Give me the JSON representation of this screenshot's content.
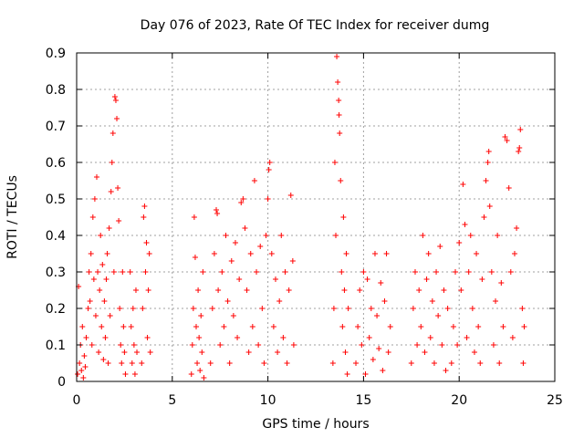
{
  "chart_data": {
    "type": "scatter",
    "title": "Day 076 of 2023, Rate Of TEC Index for receiver dumg",
    "xlabel": "GPS time / hours",
    "ylabel": "ROTI / TECUs",
    "xlim": [
      0,
      25
    ],
    "ylim": [
      0,
      0.9
    ],
    "xticks": [
      0,
      5,
      10,
      15,
      20,
      25
    ],
    "yticks": [
      0,
      0.1,
      0.2,
      0.3,
      0.4,
      0.5,
      0.6,
      0.7,
      0.8,
      0.9
    ],
    "grid": true,
    "marker": "+",
    "color": "#ff0000",
    "series": [
      {
        "values": [
          [
            0.05,
            0.02
          ],
          [
            0.1,
            0.26
          ],
          [
            0.15,
            0.05
          ],
          [
            0.2,
            0.1
          ],
          [
            0.25,
            0.03
          ],
          [
            0.3,
            0.15
          ],
          [
            0.35,
            0.01
          ],
          [
            0.4,
            0.07
          ],
          [
            0.45,
            0.04
          ],
          [
            0.5,
            0.12
          ],
          [
            0.6,
            0.2
          ],
          [
            0.65,
            0.3
          ],
          [
            0.7,
            0.22
          ],
          [
            0.75,
            0.35
          ],
          [
            0.8,
            0.1
          ],
          [
            0.85,
            0.45
          ],
          [
            0.9,
            0.28
          ],
          [
            0.95,
            0.5
          ],
          [
            1.0,
            0.18
          ],
          [
            1.05,
            0.56
          ],
          [
            1.1,
            0.3
          ],
          [
            1.15,
            0.08
          ],
          [
            1.2,
            0.25
          ],
          [
            1.25,
            0.4
          ],
          [
            1.3,
            0.15
          ],
          [
            1.35,
            0.32
          ],
          [
            1.4,
            0.06
          ],
          [
            1.45,
            0.22
          ],
          [
            1.5,
            0.12
          ],
          [
            1.55,
            0.28
          ],
          [
            1.6,
            0.35
          ],
          [
            1.65,
            0.05
          ],
          [
            1.7,
            0.42
          ],
          [
            1.75,
            0.18
          ],
          [
            1.8,
            0.52
          ],
          [
            1.85,
            0.6
          ],
          [
            1.9,
            0.68
          ],
          [
            1.95,
            0.3
          ],
          [
            2.0,
            0.78
          ],
          [
            2.05,
            0.77
          ],
          [
            2.1,
            0.72
          ],
          [
            2.15,
            0.53
          ],
          [
            2.2,
            0.44
          ],
          [
            2.25,
            0.2
          ],
          [
            2.3,
            0.1
          ],
          [
            2.35,
            0.05
          ],
          [
            2.4,
            0.3
          ],
          [
            2.45,
            0.15
          ],
          [
            2.5,
            0.08
          ],
          [
            2.55,
            0.02
          ],
          [
            2.8,
            0.3
          ],
          [
            2.85,
            0.15
          ],
          [
            2.9,
            0.05
          ],
          [
            2.95,
            0.2
          ],
          [
            3.0,
            0.1
          ],
          [
            3.05,
            0.02
          ],
          [
            3.1,
            0.25
          ],
          [
            3.15,
            0.08
          ],
          [
            3.4,
            0.05
          ],
          [
            3.45,
            0.2
          ],
          [
            3.5,
            0.45
          ],
          [
            3.55,
            0.48
          ],
          [
            3.6,
            0.3
          ],
          [
            3.65,
            0.38
          ],
          [
            3.7,
            0.12
          ],
          [
            3.75,
            0.25
          ],
          [
            3.8,
            0.35
          ],
          [
            3.85,
            0.08
          ],
          [
            6.0,
            0.02
          ],
          [
            6.05,
            0.1
          ],
          [
            6.1,
            0.2
          ],
          [
            6.15,
            0.45
          ],
          [
            6.2,
            0.34
          ],
          [
            6.25,
            0.15
          ],
          [
            6.3,
            0.05
          ],
          [
            6.35,
            0.25
          ],
          [
            6.4,
            0.12
          ],
          [
            6.45,
            0.03
          ],
          [
            6.5,
            0.18
          ],
          [
            6.55,
            0.08
          ],
          [
            6.6,
            0.3
          ],
          [
            6.65,
            0.01
          ],
          [
            7.0,
            0.05
          ],
          [
            7.1,
            0.2
          ],
          [
            7.2,
            0.35
          ],
          [
            7.3,
            0.47
          ],
          [
            7.35,
            0.46
          ],
          [
            7.4,
            0.25
          ],
          [
            7.5,
            0.1
          ],
          [
            7.6,
            0.3
          ],
          [
            7.7,
            0.15
          ],
          [
            7.8,
            0.4
          ],
          [
            7.9,
            0.22
          ],
          [
            8.0,
            0.05
          ],
          [
            8.1,
            0.33
          ],
          [
            8.2,
            0.18
          ],
          [
            8.3,
            0.38
          ],
          [
            8.4,
            0.12
          ],
          [
            8.5,
            0.28
          ],
          [
            8.6,
            0.49
          ],
          [
            8.7,
            0.5
          ],
          [
            8.8,
            0.42
          ],
          [
            8.9,
            0.25
          ],
          [
            9.0,
            0.08
          ],
          [
            9.1,
            0.35
          ],
          [
            9.2,
            0.15
          ],
          [
            9.3,
            0.55
          ],
          [
            9.4,
            0.3
          ],
          [
            9.5,
            0.1
          ],
          [
            9.6,
            0.37
          ],
          [
            9.7,
            0.2
          ],
          [
            9.8,
            0.05
          ],
          [
            9.9,
            0.4
          ],
          [
            10.0,
            0.5
          ],
          [
            10.05,
            0.58
          ],
          [
            10.1,
            0.6
          ],
          [
            10.2,
            0.35
          ],
          [
            10.3,
            0.15
          ],
          [
            10.4,
            0.28
          ],
          [
            10.5,
            0.08
          ],
          [
            10.6,
            0.22
          ],
          [
            10.7,
            0.4
          ],
          [
            10.8,
            0.12
          ],
          [
            10.9,
            0.3
          ],
          [
            11.0,
            0.05
          ],
          [
            11.1,
            0.25
          ],
          [
            11.2,
            0.51
          ],
          [
            11.3,
            0.33
          ],
          [
            11.35,
            0.1
          ],
          [
            13.4,
            0.05
          ],
          [
            13.45,
            0.2
          ],
          [
            13.5,
            0.6
          ],
          [
            13.55,
            0.4
          ],
          [
            13.6,
            0.89
          ],
          [
            13.65,
            0.82
          ],
          [
            13.7,
            0.77
          ],
          [
            13.72,
            0.73
          ],
          [
            13.75,
            0.68
          ],
          [
            13.8,
            0.55
          ],
          [
            13.85,
            0.3
          ],
          [
            13.9,
            0.15
          ],
          [
            13.95,
            0.45
          ],
          [
            14.0,
            0.25
          ],
          [
            14.05,
            0.08
          ],
          [
            14.1,
            0.35
          ],
          [
            14.15,
            0.02
          ],
          [
            14.2,
            0.2
          ],
          [
            14.6,
            0.05
          ],
          [
            14.7,
            0.15
          ],
          [
            14.8,
            0.25
          ],
          [
            14.9,
            0.1
          ],
          [
            15.0,
            0.3
          ],
          [
            15.1,
            0.02
          ],
          [
            15.2,
            0.28
          ],
          [
            15.3,
            0.12
          ],
          [
            15.4,
            0.2
          ],
          [
            15.5,
            0.06
          ],
          [
            15.6,
            0.35
          ],
          [
            15.7,
            0.18
          ],
          [
            15.8,
            0.09
          ],
          [
            15.9,
            0.27
          ],
          [
            16.0,
            0.03
          ],
          [
            16.1,
            0.22
          ],
          [
            16.2,
            0.35
          ],
          [
            16.3,
            0.08
          ],
          [
            16.4,
            0.15
          ],
          [
            17.5,
            0.05
          ],
          [
            17.6,
            0.2
          ],
          [
            17.7,
            0.3
          ],
          [
            17.8,
            0.1
          ],
          [
            17.9,
            0.25
          ],
          [
            18.0,
            0.15
          ],
          [
            18.1,
            0.4
          ],
          [
            18.2,
            0.08
          ],
          [
            18.3,
            0.28
          ],
          [
            18.4,
            0.35
          ],
          [
            18.5,
            0.12
          ],
          [
            18.6,
            0.22
          ],
          [
            18.7,
            0.05
          ],
          [
            18.8,
            0.3
          ],
          [
            18.9,
            0.18
          ],
          [
            19.0,
            0.37
          ],
          [
            19.1,
            0.1
          ],
          [
            19.2,
            0.25
          ],
          [
            19.3,
            0.03
          ],
          [
            19.4,
            0.2
          ],
          [
            19.6,
            0.05
          ],
          [
            19.7,
            0.15
          ],
          [
            19.8,
            0.3
          ],
          [
            19.9,
            0.1
          ],
          [
            20.0,
            0.38
          ],
          [
            20.1,
            0.25
          ],
          [
            20.2,
            0.54
          ],
          [
            20.3,
            0.43
          ],
          [
            20.4,
            0.12
          ],
          [
            20.5,
            0.3
          ],
          [
            20.6,
            0.4
          ],
          [
            20.7,
            0.2
          ],
          [
            20.8,
            0.08
          ],
          [
            20.9,
            0.35
          ],
          [
            21.0,
            0.15
          ],
          [
            21.1,
            0.05
          ],
          [
            21.2,
            0.28
          ],
          [
            21.3,
            0.45
          ],
          [
            21.4,
            0.55
          ],
          [
            21.5,
            0.6
          ],
          [
            21.55,
            0.63
          ],
          [
            21.6,
            0.48
          ],
          [
            21.7,
            0.3
          ],
          [
            21.8,
            0.1
          ],
          [
            21.9,
            0.22
          ],
          [
            22.0,
            0.4
          ],
          [
            22.1,
            0.05
          ],
          [
            22.2,
            0.27
          ],
          [
            22.3,
            0.15
          ],
          [
            22.4,
            0.67
          ],
          [
            22.5,
            0.66
          ],
          [
            22.6,
            0.53
          ],
          [
            22.7,
            0.3
          ],
          [
            22.8,
            0.12
          ],
          [
            22.9,
            0.35
          ],
          [
            23.0,
            0.42
          ],
          [
            23.1,
            0.63
          ],
          [
            23.15,
            0.64
          ],
          [
            23.2,
            0.69
          ],
          [
            23.3,
            0.2
          ],
          [
            23.35,
            0.05
          ],
          [
            23.4,
            0.15
          ]
        ]
      }
    ]
  }
}
